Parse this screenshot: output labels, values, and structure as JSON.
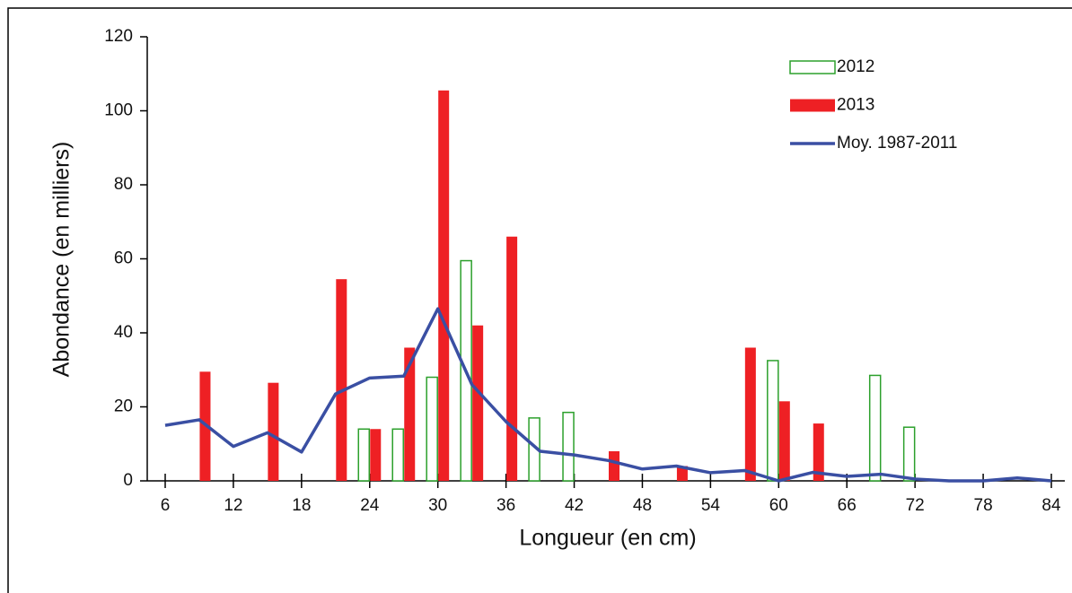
{
  "chart_data": {
    "type": "bar",
    "x_label": "Longueur (en cm)",
    "y_label": "Abondance (en milliers)",
    "x": [
      6,
      9,
      12,
      15,
      18,
      21,
      24,
      27,
      30,
      33,
      36,
      39,
      42,
      45,
      48,
      51,
      54,
      57,
      60,
      63,
      66,
      69,
      72,
      75,
      78,
      81,
      84
    ],
    "series": [
      {
        "name": "2012",
        "type": "bar",
        "color": "#2ca02c",
        "values": [
          null,
          null,
          null,
          null,
          null,
          null,
          14,
          14,
          28,
          59.5,
          null,
          17,
          18.5,
          null,
          null,
          null,
          null,
          null,
          32.5,
          null,
          null,
          28.5,
          14.5,
          null,
          null,
          null,
          null
        ]
      },
      {
        "name": "2013",
        "type": "bar",
        "color": "#ee2024",
        "values": [
          null,
          29.5,
          null,
          26.5,
          null,
          54.5,
          14,
          36,
          105.5,
          42,
          66,
          null,
          null,
          8,
          null,
          4,
          null,
          36,
          21.5,
          15.5,
          null,
          null,
          null,
          null,
          null,
          null,
          null
        ]
      },
      {
        "name": "Moy. 1987-2011",
        "type": "line",
        "color": "#3a4fa3",
        "values": [
          15,
          16.5,
          9.3,
          13,
          7.8,
          23.5,
          27.8,
          28.3,
          46.5,
          26,
          16,
          8,
          7,
          5.5,
          3.2,
          4,
          2.2,
          2.8,
          0,
          2.3,
          1.2,
          1.8,
          0.5,
          0,
          0,
          0.8,
          0
        ]
      }
    ],
    "xlim": [
      6,
      84
    ],
    "xticks": [
      6,
      12,
      18,
      24,
      30,
      36,
      42,
      48,
      54,
      60,
      66,
      72,
      78,
      84
    ],
    "ylim": [
      0,
      120
    ],
    "yticks": [
      0,
      20,
      40,
      60,
      80,
      100,
      120
    ],
    "legend": "top-right"
  }
}
